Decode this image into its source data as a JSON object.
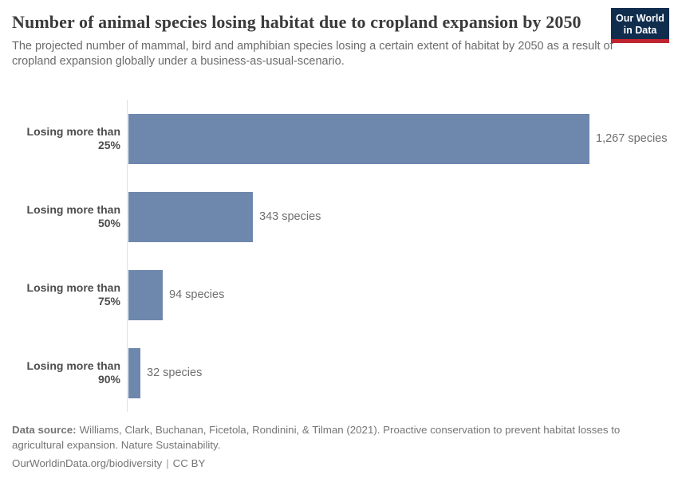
{
  "header": {
    "title": "Number of animal species losing habitat due to cropland expansion by 2050",
    "subtitle": "The projected number of mammal, bird and amphibian species losing a certain extent of habitat by 2050 as a result of cropland expansion globally under a business-as-usual-scenario.",
    "logo": {
      "line1": "Our World",
      "line2": "in Data"
    }
  },
  "colors": {
    "bar": "#6e87ad",
    "logo_bg": "#102d4e",
    "logo_accent": "#bf2430",
    "axis_line": "#e0e0e0"
  },
  "chart_data": {
    "type": "bar",
    "orientation": "horizontal",
    "title": "Number of animal species losing habitat due to cropland expansion by 2050",
    "categories": [
      "Losing more than 25%",
      "Losing more than 50%",
      "Losing more than 75%",
      "Losing more than 90%"
    ],
    "values": [
      1267,
      343,
      94,
      32
    ],
    "value_labels": [
      "1,267 species",
      "343 species",
      "94 species",
      "32 species"
    ],
    "unit": "species",
    "xlim": [
      0,
      1267
    ],
    "grid": false,
    "legend": "none"
  },
  "footer": {
    "datasource_label": "Data source:",
    "datasource_text": "Williams, Clark, Buchanan, Ficetola, Rondinini, & Tilman (2021). Proactive conservation to prevent habitat losses to agricultural expansion. Nature Sustainability.",
    "url": "OurWorldinData.org/biodiversity",
    "separator": "|",
    "license": "CC BY"
  }
}
